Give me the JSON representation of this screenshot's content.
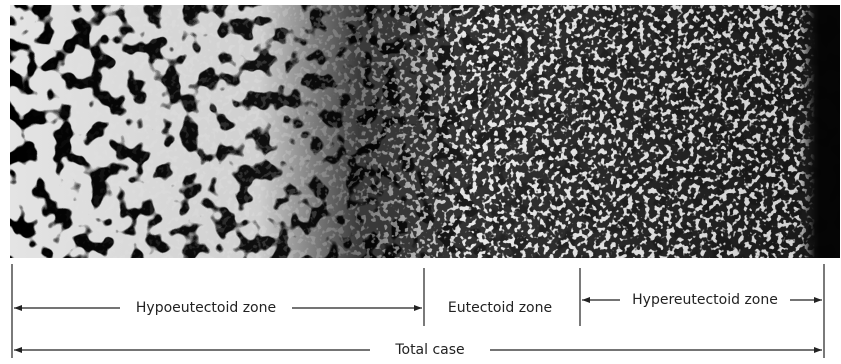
{
  "zones": [
    {
      "label": "Hypoeutectoid zone"
    },
    {
      "label": "Eutectoid zone"
    },
    {
      "label": "Hypereutectoid zone"
    }
  ],
  "total": {
    "label": "Total case"
  }
}
